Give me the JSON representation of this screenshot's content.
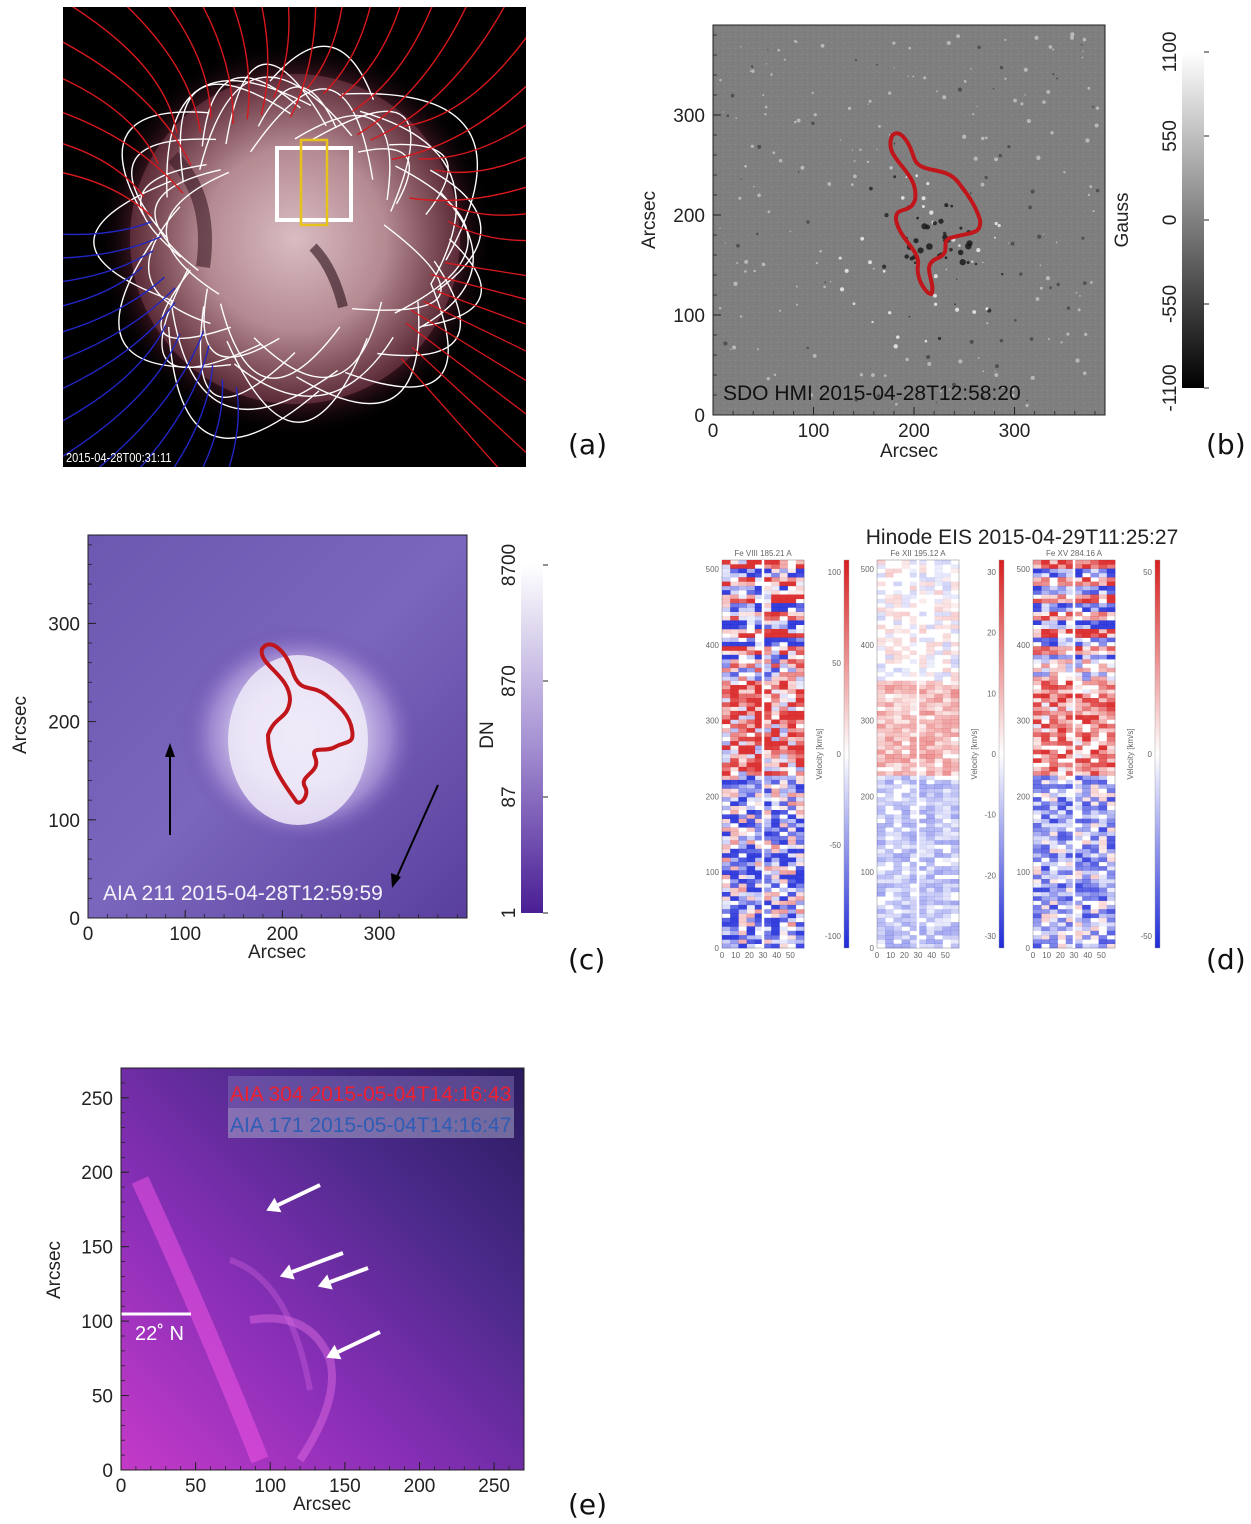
{
  "panels": {
    "a": {
      "label": "(a)",
      "timestamp": "2015-04-28T00:31:11"
    },
    "b": {
      "label": "(b)",
      "caption": "SDO HMI 2015-04-28T12:58:20",
      "x_ticks": [
        "0",
        "100",
        "200",
        "300"
      ],
      "y_ticks": [
        "0",
        "100",
        "200",
        "300"
      ],
      "xlabel": "Arcsec",
      "ylabel": "Arcsec",
      "colorbar_ticks": [
        "1100",
        "550",
        "0",
        "-550",
        "-1100"
      ],
      "colorbar_label": "Gauss"
    },
    "c": {
      "label": "(c)",
      "caption": "AIA 211 2015-04-28T12:59:59",
      "x_ticks": [
        "0",
        "100",
        "200",
        "300"
      ],
      "y_ticks": [
        "0",
        "100",
        "200",
        "300"
      ],
      "xlabel": "Arcsec",
      "ylabel": "Arcsec",
      "colorbar_ticks": [
        "8700",
        "870",
        "87",
        "1"
      ],
      "colorbar_label": "DN"
    },
    "d": {
      "label": "(d)",
      "title": "Hinode EIS 2015-04-29T11:25:27",
      "subpanels": [
        {
          "line": "Fe VIII  185.21  A",
          "cbar_ticks": [
            "100",
            "50",
            "0",
            "-50",
            "-100"
          ],
          "cbar_label": "Velocity [km/s]"
        },
        {
          "line": "Fe XII  195.12  A",
          "cbar_ticks": [
            "30",
            "20",
            "10",
            "0",
            "-10",
            "-20",
            "-30"
          ],
          "cbar_label": "Velocity [km/s]"
        },
        {
          "line": "Fe XV  284.16  A",
          "cbar_ticks": [
            "50",
            "0",
            "-50"
          ],
          "cbar_label": "Velocity [km/s]"
        }
      ],
      "y_ticks": [
        "0",
        "100",
        "200",
        "300",
        "400",
        "500"
      ],
      "x_ticks": [
        "0",
        "10",
        "20",
        "30",
        "40",
        "50"
      ]
    },
    "e": {
      "label": "(e)",
      "caption_304": "AIA 304 2015-05-04T14:16:43",
      "caption_171": "AIA 171 2015-05-04T14:16:47",
      "latitude_marker": "22˚ N",
      "x_ticks": [
        "0",
        "50",
        "100",
        "150",
        "200",
        "250"
      ],
      "y_ticks": [
        "0",
        "50",
        "100",
        "150",
        "200",
        "250"
      ],
      "xlabel": "Arcsec",
      "ylabel": "Arcsec"
    }
  },
  "colors": {
    "contour": "#c0161b",
    "field_open_pos": "#d8181c",
    "field_open_neg": "#2126c4",
    "field_closed": "#ffffff",
    "aia304": "#e8283a",
    "aia171": "#3a62b8"
  }
}
